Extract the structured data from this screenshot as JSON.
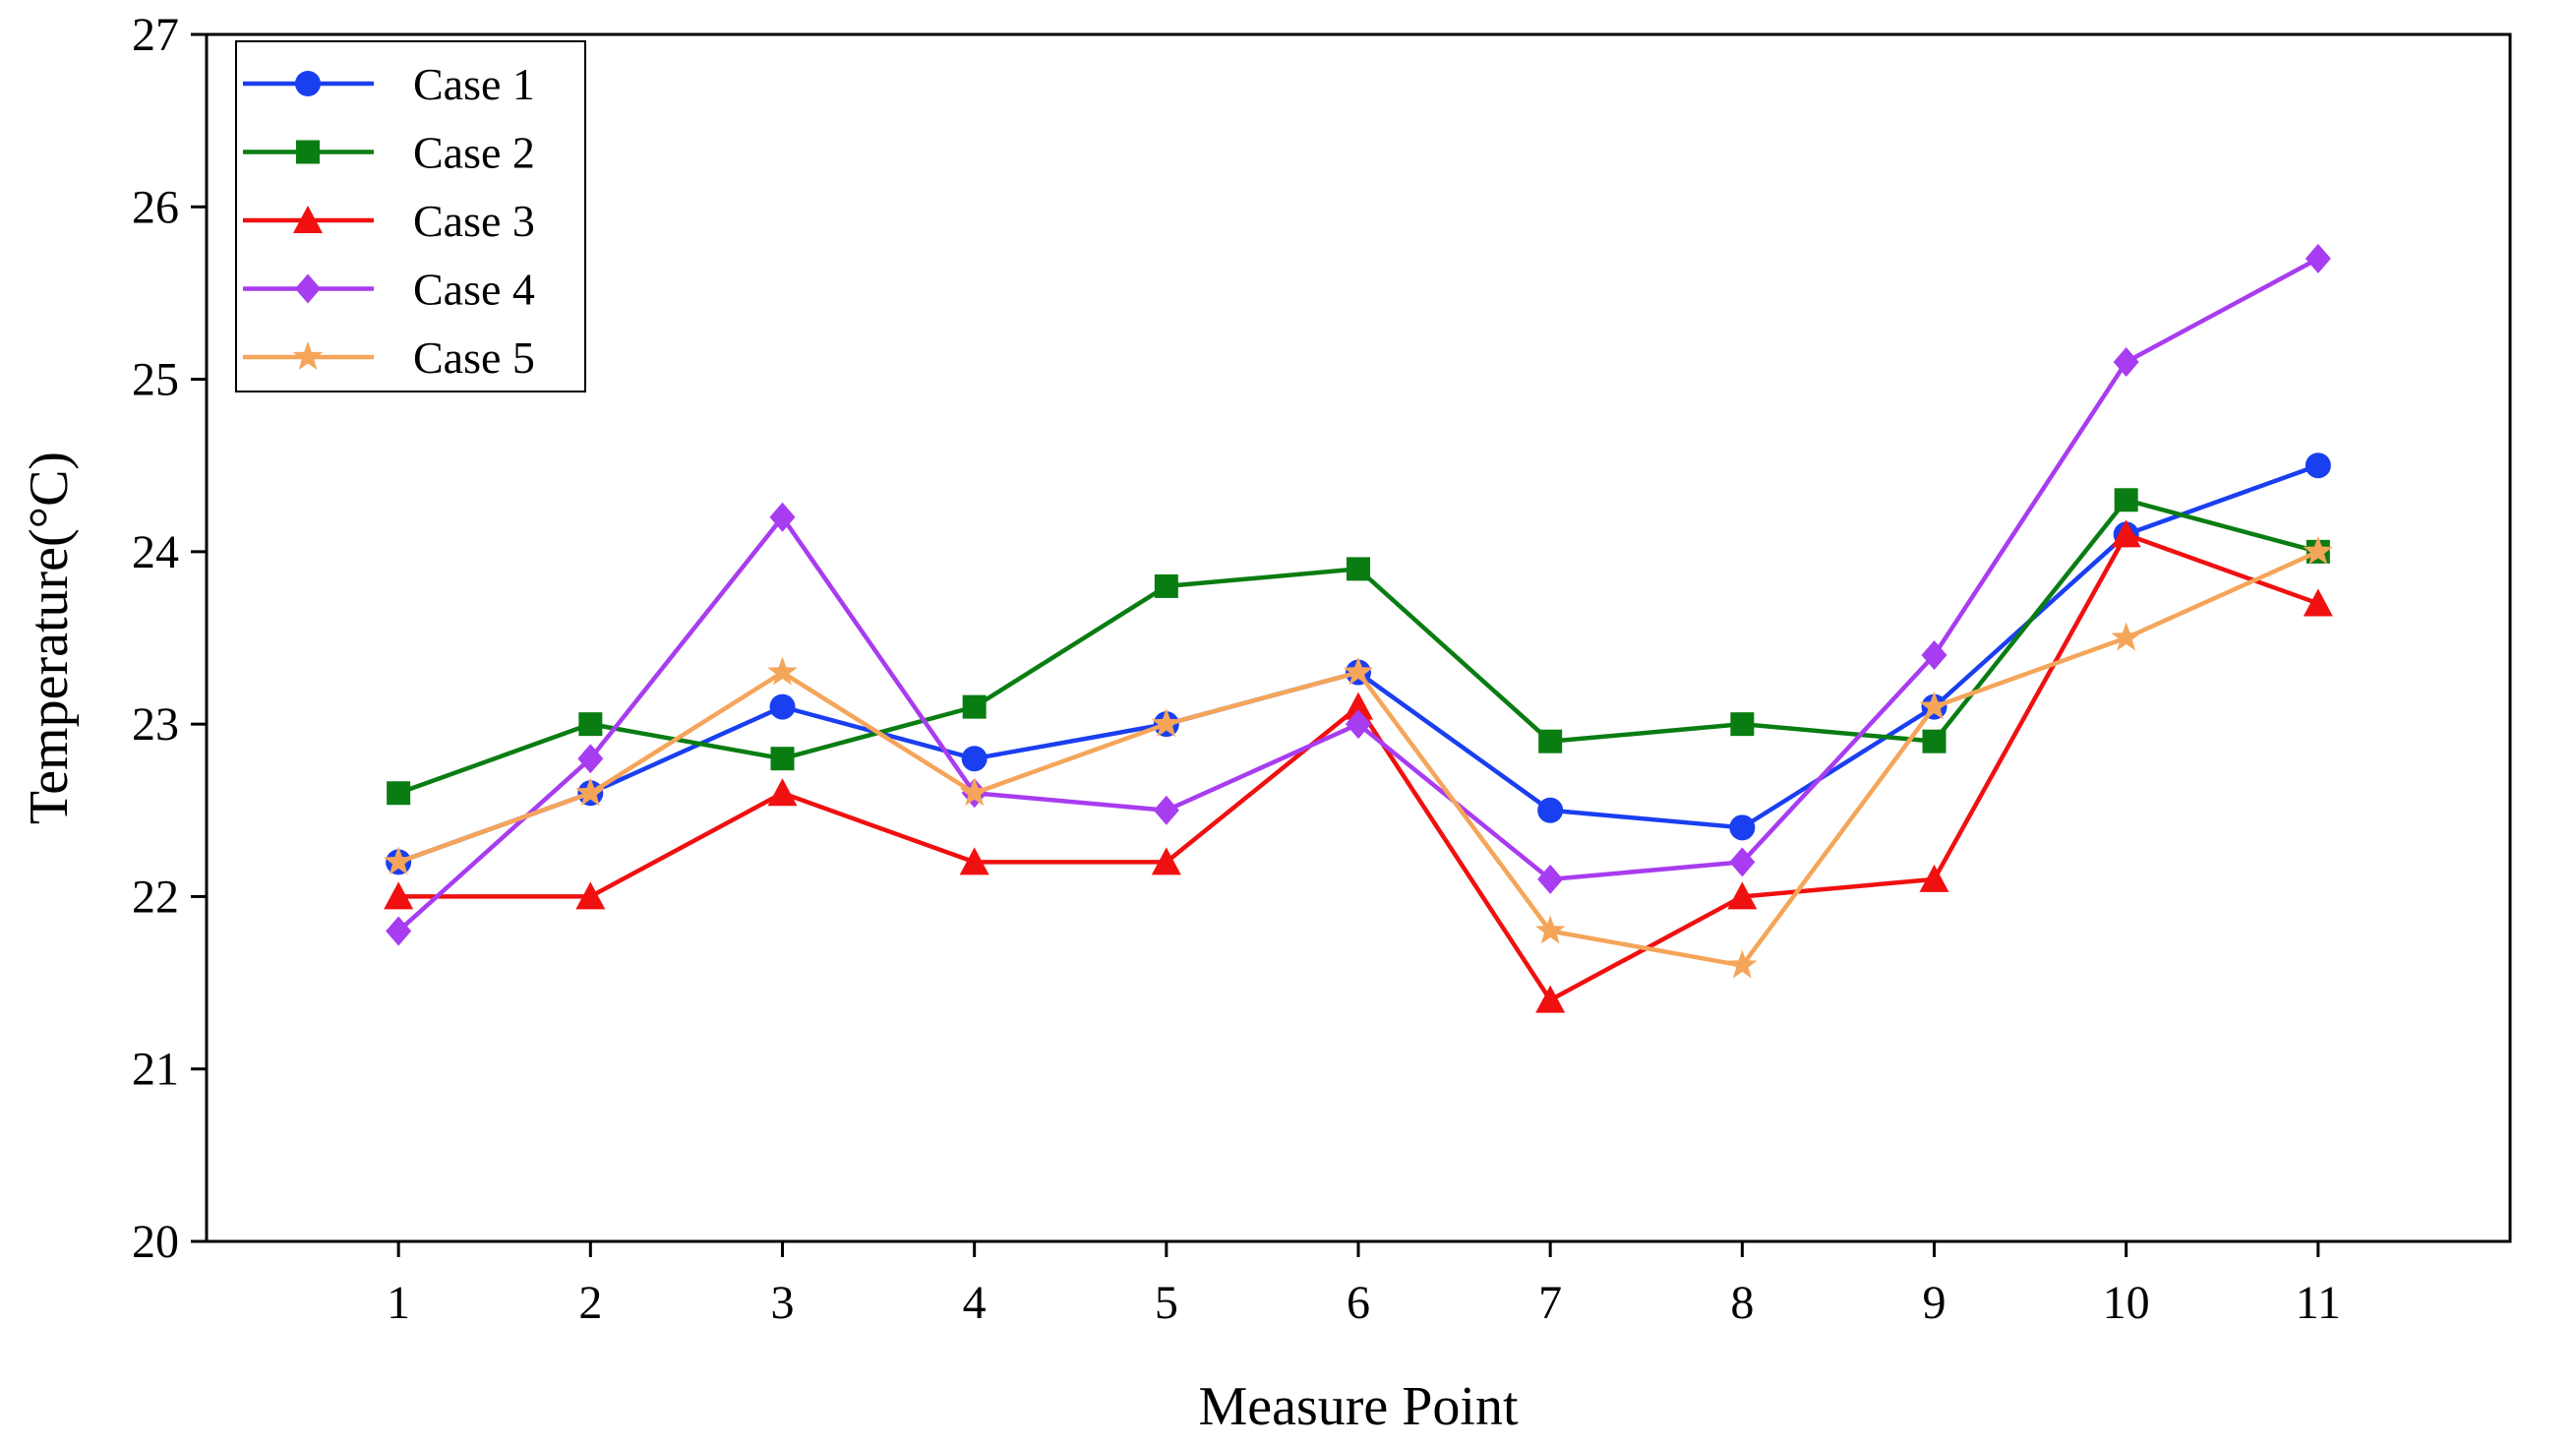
{
  "chart_data": {
    "type": "line",
    "title": "",
    "xlabel": "Measure Point",
    "ylabel": "Temperature(°C)",
    "x": [
      1,
      2,
      3,
      4,
      5,
      6,
      7,
      8,
      9,
      10,
      11
    ],
    "x_tick_labels": [
      "1",
      "2",
      "3",
      "4",
      "5",
      "6",
      "7",
      "8",
      "9",
      "10",
      "11"
    ],
    "xlim": [
      0,
      12
    ],
    "ylim": [
      20,
      27
    ],
    "y_ticks": [
      20,
      21,
      22,
      23,
      24,
      25,
      26,
      27
    ],
    "y_tick_labels": [
      "20",
      "21",
      "22",
      "23",
      "24",
      "25",
      "26",
      "27"
    ],
    "grid": false,
    "legend_position": "top-left",
    "series": [
      {
        "name": "Case 1",
        "color": "#1a3ff0",
        "marker": "circle",
        "values": [
          22.2,
          22.6,
          23.1,
          22.8,
          23.0,
          23.3,
          22.5,
          22.4,
          23.1,
          24.1,
          24.5
        ]
      },
      {
        "name": "Case 2",
        "color": "#0a7d12",
        "marker": "square",
        "values": [
          22.6,
          23.0,
          22.8,
          23.1,
          23.8,
          23.9,
          22.9,
          23.0,
          22.9,
          24.3,
          24.0
        ]
      },
      {
        "name": "Case 3",
        "color": "#f01010",
        "marker": "triangle",
        "values": [
          22.0,
          22.0,
          22.6,
          22.2,
          22.2,
          23.1,
          21.4,
          22.0,
          22.1,
          24.1,
          23.7
        ]
      },
      {
        "name": "Case 4",
        "color": "#a83cf0",
        "marker": "diamond",
        "values": [
          21.8,
          22.8,
          24.2,
          22.6,
          22.5,
          23.0,
          22.1,
          22.2,
          23.4,
          25.1,
          25.7
        ]
      },
      {
        "name": "Case 5",
        "color": "#f5a55a",
        "marker": "star",
        "values": [
          22.2,
          22.6,
          23.3,
          22.6,
          23.0,
          23.3,
          21.8,
          21.6,
          23.1,
          23.5,
          24.0
        ]
      }
    ]
  }
}
